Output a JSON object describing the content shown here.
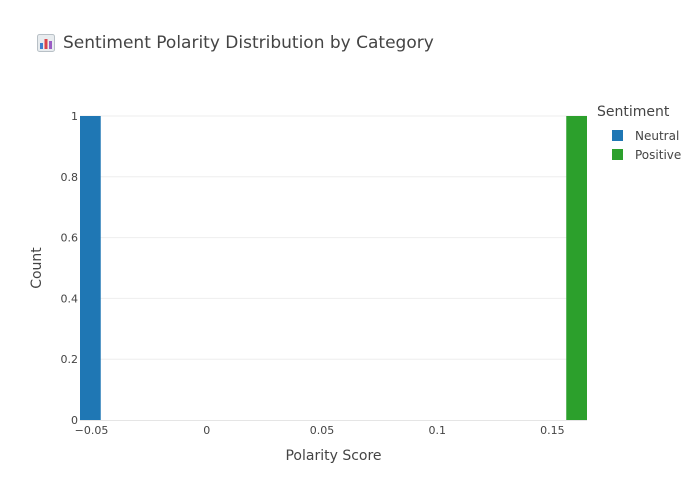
{
  "chart_data": {
    "type": "bar",
    "title": "Sentiment Polarity Distribution by Category",
    "title_icon": "bar-chart-emoji-icon",
    "xlabel": "Polarity Score",
    "ylabel": "Count",
    "xlim": [
      -0.055,
      0.165
    ],
    "ylim": [
      0,
      1
    ],
    "x_ticks": [
      -0.05,
      0,
      0.05,
      0.1,
      0.15
    ],
    "x_tick_labels": [
      "−0.05",
      "0",
      "0.05",
      "0.1",
      "0.15"
    ],
    "y_ticks": [
      0,
      0.2,
      0.4,
      0.6,
      0.8,
      1
    ],
    "y_tick_labels": [
      "0",
      "0.2",
      "0.4",
      "0.6",
      "0.8",
      "1"
    ],
    "grid": true,
    "legend_title": "Sentiment",
    "legend_position": "top-right",
    "series": [
      {
        "name": "Neutral",
        "color": "#1f77b4",
        "bins": [
          {
            "x0": -0.055,
            "x1": -0.046,
            "count": 1
          }
        ]
      },
      {
        "name": "Positive",
        "color": "#2ca02c",
        "bins": [
          {
            "x0": 0.156,
            "x1": 0.165,
            "count": 1
          }
        ]
      }
    ]
  }
}
